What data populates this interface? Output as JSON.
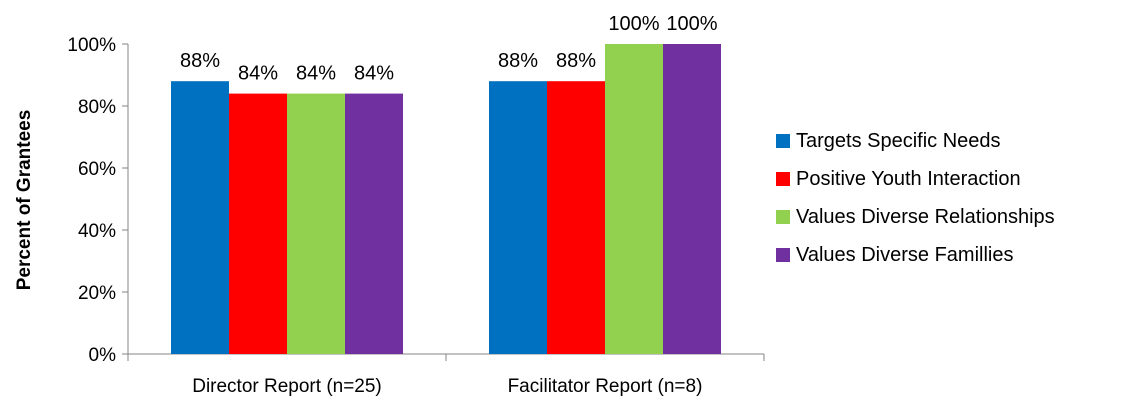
{
  "chart_data": {
    "type": "bar",
    "categories": [
      "Director Report (n=25)",
      "Facilitator Report (n=8)"
    ],
    "series": [
      {
        "name": "Targets Specific Needs",
        "values": [
          88,
          88
        ],
        "labels": [
          "88%",
          "88%"
        ],
        "color": "#0070C0"
      },
      {
        "name": "Positive Youth Interaction",
        "values": [
          84,
          88
        ],
        "labels": [
          "84%",
          "88%"
        ],
        "color": "#FF0000"
      },
      {
        "name": "Values Diverse Relationships",
        "values": [
          84,
          100
        ],
        "labels": [
          "84%",
          "100%"
        ],
        "color": "#92D050"
      },
      {
        "name": "Values Diverse Famillies",
        "values": [
          84,
          100
        ],
        "labels": [
          "84%",
          "100%"
        ],
        "color": "#7030A0"
      }
    ],
    "ylabel": "Percent of Grantees",
    "xlabel": "",
    "title": "",
    "ylim": [
      0,
      100
    ],
    "yticks": [
      "0%",
      "20%",
      "40%",
      "60%",
      "80%",
      "100%"
    ],
    "grid": false,
    "legend_position": "right"
  }
}
